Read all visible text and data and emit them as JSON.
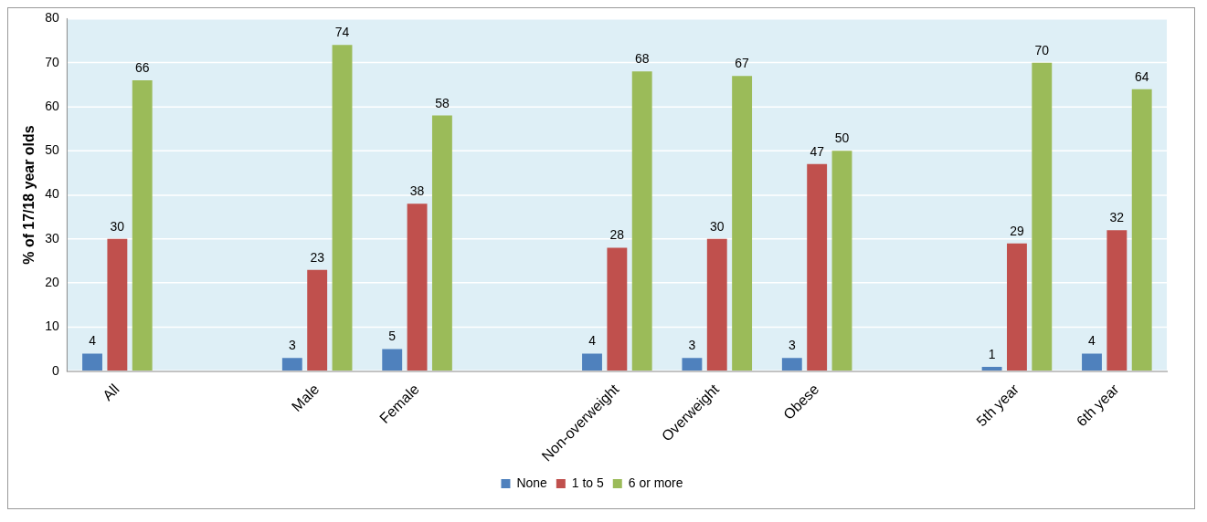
{
  "chart_data": {
    "type": "bar",
    "ylabel": "% of 17/18 year olds",
    "categories": [
      "All",
      null,
      "Male",
      "Female",
      null,
      "Non-overweight",
      "Overweight",
      "Obese",
      null,
      "5th year",
      "6th year"
    ],
    "series": [
      {
        "name": "None",
        "color": "#4f81bd",
        "values": [
          4,
          null,
          3,
          5,
          null,
          4,
          3,
          3,
          null,
          1,
          4
        ]
      },
      {
        "name": "1 to 5",
        "color": "#c0504d",
        "values": [
          30,
          null,
          23,
          38,
          null,
          28,
          30,
          47,
          null,
          29,
          32
        ]
      },
      {
        "name": "6 or more",
        "color": "#9bbb59",
        "values": [
          66,
          null,
          74,
          58,
          null,
          68,
          67,
          50,
          null,
          70,
          64
        ]
      }
    ],
    "ylim": [
      0,
      80
    ],
    "yticks": [
      0,
      10,
      20,
      30,
      40,
      50,
      60,
      70,
      80
    ],
    "grid": "y",
    "legend": "bottom",
    "data_labels": true
  }
}
